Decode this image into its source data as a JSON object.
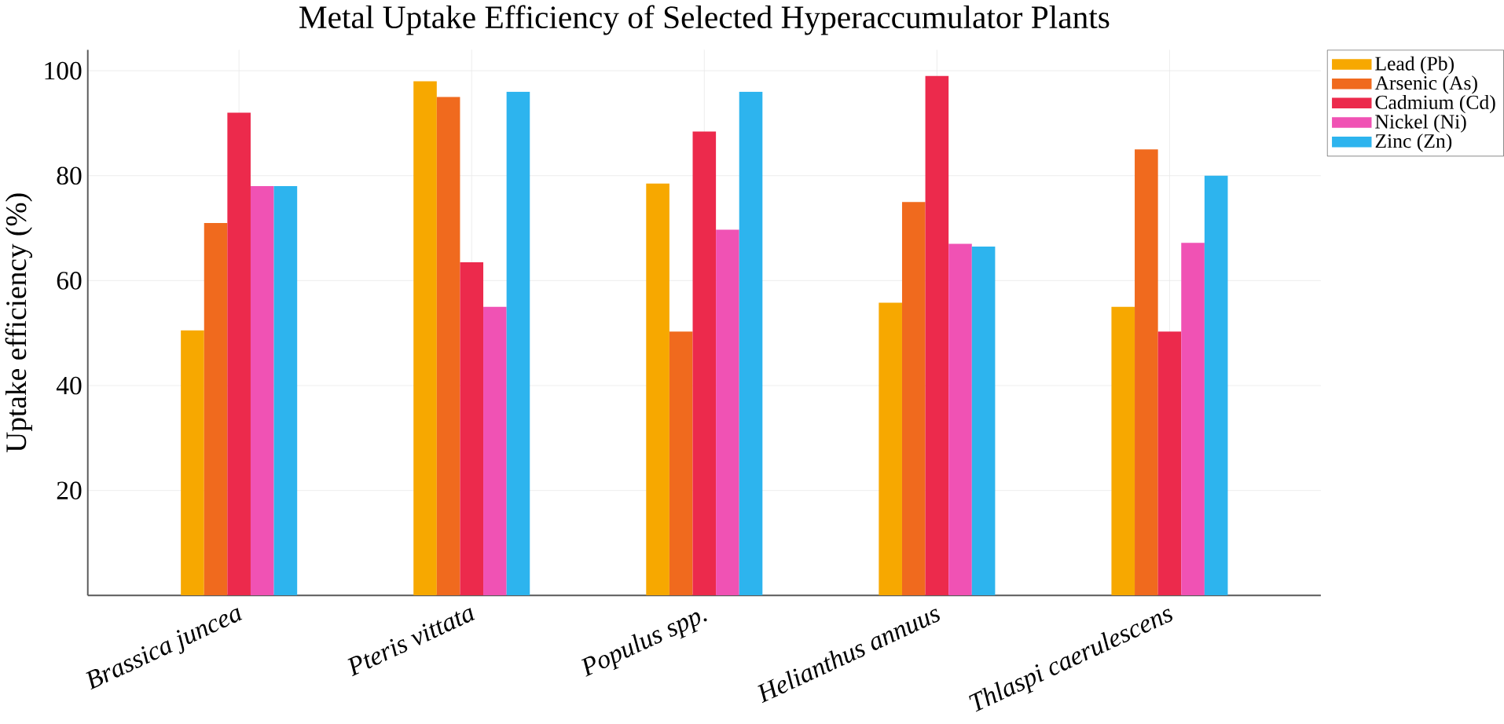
{
  "chart_data": {
    "type": "bar",
    "title": "Metal Uptake Efficiency of Selected Hyperaccumulator Plants",
    "ylabel": "Uptake efficiency (%)",
    "categories": [
      "Brassica juncea",
      "Pteris vittata",
      "Populus spp.",
      "Helianthus annuus",
      "Thlaspi caerulescens"
    ],
    "series": [
      {
        "name": "Lead (Pb)",
        "color": "#f7a800",
        "values": [
          50.5,
          98,
          78.5,
          55.8,
          55
        ]
      },
      {
        "name": "Arsenic (As)",
        "color": "#f06a1e",
        "values": [
          71,
          95,
          50.3,
          75,
          85
        ]
      },
      {
        "name": "Cadmium (Cd)",
        "color": "#ec2a4c",
        "values": [
          92,
          63.5,
          88.4,
          99,
          50.3
        ]
      },
      {
        "name": "Nickel (Ni)",
        "color": "#f052b4",
        "values": [
          78,
          55,
          69.7,
          67,
          67.2
        ]
      },
      {
        "name": "Zinc (Zn)",
        "color": "#2db4ee",
        "values": [
          78,
          96,
          96,
          66.5,
          80
        ]
      }
    ],
    "ylim": [
      0,
      104
    ],
    "yticks": [
      20,
      40,
      60,
      80,
      100
    ],
    "grid": true,
    "legend": "top right"
  }
}
